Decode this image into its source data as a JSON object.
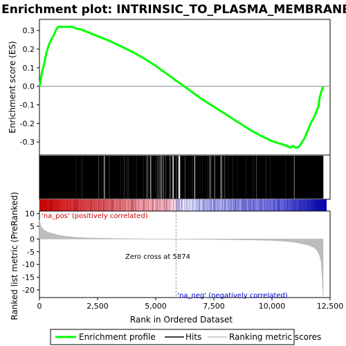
{
  "chart_data": {
    "type": "line",
    "title": "Enrichment plot: INTRINSIC_TO_PLASMA_MEMBRANE",
    "xlabel": "Rank in Ordered Dataset",
    "xlim": [
      0,
      12500
    ],
    "x_ticks": [
      0,
      2500,
      5000,
      7500,
      10000,
      12500
    ],
    "x_tick_labels": [
      "0",
      "2,500",
      "5,000",
      "7,500",
      "10,000",
      "12,500"
    ],
    "top_panel": {
      "ylabel": "Enrichment score (ES)",
      "ylim": [
        -0.37,
        0.36
      ],
      "y_ticks": [
        -0.3,
        -0.2,
        -0.1,
        0.0,
        0.1,
        0.2,
        0.3
      ],
      "y_tick_labels": [
        "-0.3",
        "-0.2",
        "-0.1",
        "0.0",
        "0.1",
        "0.2",
        "0.3"
      ],
      "series": [
        {
          "name": "Enrichment profile",
          "color": "#00ff00",
          "x": [
            0,
            50,
            100,
            200,
            300,
            400,
            500,
            600,
            700,
            800,
            900,
            1000,
            1100,
            1200,
            1300,
            1400,
            1500,
            1600,
            1800,
            2000,
            2500,
            3000,
            3500,
            4000,
            4500,
            5000,
            5500,
            5874,
            6000,
            6500,
            7000,
            7500,
            8000,
            8500,
            9000,
            9500,
            10000,
            10500,
            10800,
            10900,
            11000,
            11100,
            11200,
            11300,
            11400,
            11500,
            11600,
            11700,
            11800,
            11900,
            12000,
            12050,
            12100,
            12150,
            12200
          ],
          "y": [
            0.0,
            0.03,
            0.07,
            0.12,
            0.18,
            0.22,
            0.25,
            0.27,
            0.3,
            0.32,
            0.32,
            0.32,
            0.32,
            0.32,
            0.32,
            0.32,
            0.315,
            0.31,
            0.305,
            0.295,
            0.27,
            0.245,
            0.215,
            0.185,
            0.15,
            0.11,
            0.065,
            0.03,
            0.02,
            -0.025,
            -0.07,
            -0.11,
            -0.15,
            -0.19,
            -0.23,
            -0.265,
            -0.295,
            -0.315,
            -0.33,
            -0.32,
            -0.33,
            -0.33,
            -0.32,
            -0.3,
            -0.28,
            -0.25,
            -0.22,
            -0.19,
            -0.17,
            -0.14,
            -0.11,
            -0.06,
            -0.04,
            -0.02,
            0.0
          ]
        }
      ],
      "zero_line_color": "#888888"
    },
    "hits_panel": {
      "name": "Hits",
      "density_segments": [
        [
          0,
          1450,
          1.0
        ],
        [
          1450,
          1700,
          0.55
        ],
        [
          1700,
          2500,
          0.85
        ],
        [
          2500,
          3200,
          0.7
        ],
        [
          3200,
          4300,
          0.75
        ],
        [
          4300,
          5600,
          0.6
        ],
        [
          5600,
          6300,
          0.45
        ],
        [
          6300,
          7600,
          0.6
        ],
        [
          7600,
          9300,
          0.65
        ],
        [
          9300,
          10900,
          0.85
        ],
        [
          10900,
          11100,
          0.5
        ],
        [
          11100,
          12200,
          0.95
        ]
      ],
      "hit_color": "#000000"
    },
    "ranked_metric_panel": {
      "ylabel": "Ranked list metric (PreRanked)",
      "ylim": [
        -23,
        11
      ],
      "y_ticks": [
        10,
        5,
        0,
        -5,
        -10,
        -15,
        -20
      ],
      "y_tick_labels": [
        "10",
        "5",
        "0",
        "-5",
        "-10",
        "-15",
        "-20"
      ],
      "series": [
        {
          "name": "Ranking metric scores",
          "color": "#bdbdbd",
          "x": [
            0,
            50,
            100,
            200,
            400,
            700,
            1000,
            1500,
            2000,
            3000,
            4000,
            5000,
            5874,
            7000,
            8000,
            9000,
            10000,
            10500,
            11000,
            11300,
            11600,
            11800,
            11950,
            12050,
            12120,
            12160,
            12200
          ],
          "y": [
            7.5,
            5.5,
            4.5,
            3.5,
            2.6,
            1.8,
            1.2,
            0.7,
            0.45,
            0.25,
            0.12,
            0.05,
            0.0,
            -0.1,
            -0.2,
            -0.35,
            -0.55,
            -0.8,
            -1.3,
            -1.8,
            -2.5,
            -3.3,
            -4.5,
            -6.5,
            -9.0,
            -15.0,
            -22.5
          ]
        }
      ],
      "zero_cross_rank": 5874,
      "zero_cross_text": "Zero cross at 5874",
      "pos_label": "'na_pos' (positively correlated)",
      "neg_label": "'na_neg' (negatively correlated)"
    },
    "legend": [
      {
        "label": "Enrichment profile",
        "color": "#00ff00"
      },
      {
        "label": "Hits",
        "color": "#000000"
      },
      {
        "label": "Ranking metric scores",
        "color": "#bdbdbd"
      }
    ]
  }
}
